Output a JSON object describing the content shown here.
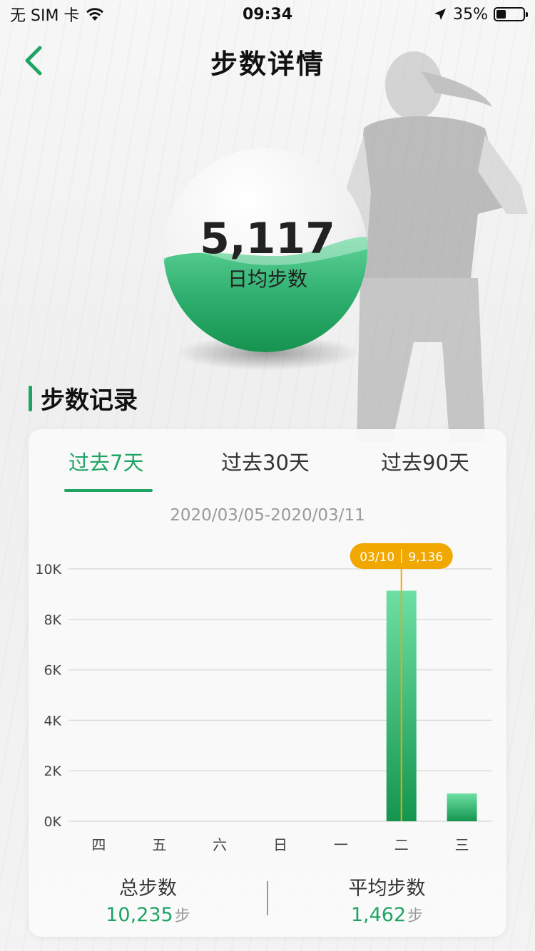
{
  "status_bar": {
    "carrier": "无 SIM 卡",
    "time": "09:34",
    "battery": "35%",
    "battery_level": 0.35,
    "wifi_icon": "wifi-icon",
    "location_icon": "location-arrow-icon"
  },
  "nav": {
    "title": "步数详情",
    "back_icon": "chevron-left-icon"
  },
  "summary_ball": {
    "value": "5,117",
    "label": "日均步数",
    "fill_level": 0.52
  },
  "section": {
    "title": "步数记录"
  },
  "tabs": [
    {
      "label": "过去7天",
      "active": true
    },
    {
      "label": "过去30天",
      "active": false
    },
    {
      "label": "过去90天",
      "active": false
    }
  ],
  "date_range": "2020/03/05-2020/03/11",
  "chart_data": {
    "type": "bar",
    "categories": [
      "四",
      "五",
      "六",
      "日",
      "一",
      "二",
      "三"
    ],
    "values": [
      0,
      0,
      0,
      0,
      0,
      9136,
      1100
    ],
    "ylim": [
      0,
      10000
    ],
    "yticks": [
      "0K",
      "2K",
      "4K",
      "6K",
      "8K",
      "10K"
    ],
    "ytick_values": [
      0,
      2000,
      4000,
      6000,
      8000,
      10000
    ],
    "grid": true,
    "tooltip": {
      "index": 5,
      "date": "03/10",
      "value": "9,136"
    },
    "bar_color": "#1fa463",
    "tooltip_color": "#f0a800"
  },
  "totals": {
    "total_label": "总步数",
    "total_value": "10,235",
    "total_unit": "步",
    "avg_label": "平均步数",
    "avg_value": "1,462",
    "avg_unit": "步"
  },
  "colors": {
    "accent": "#1fa463",
    "tooltip": "#f0a800"
  }
}
